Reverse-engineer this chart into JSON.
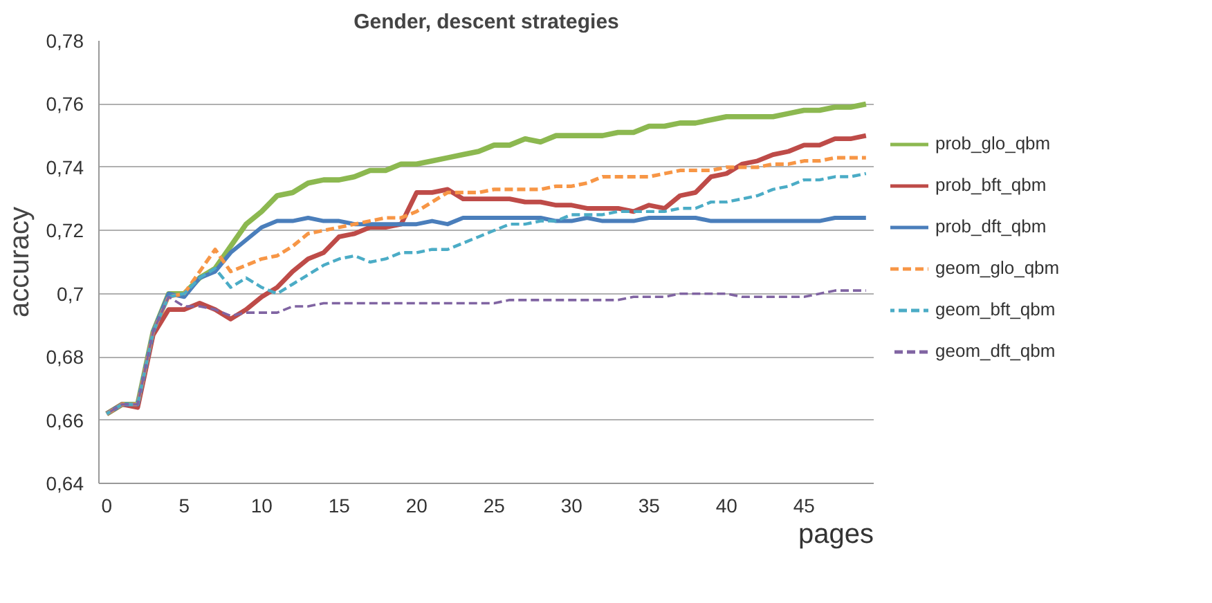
{
  "chart_data": {
    "type": "line",
    "title": "Gender, descent strategies",
    "xlabel": "pages",
    "ylabel": "accuracy",
    "x": [
      0,
      1,
      2,
      3,
      4,
      5,
      6,
      7,
      8,
      9,
      10,
      11,
      12,
      13,
      14,
      15,
      16,
      17,
      18,
      19,
      20,
      21,
      22,
      23,
      24,
      25,
      26,
      27,
      28,
      29,
      30,
      31,
      32,
      33,
      34,
      35,
      36,
      37,
      38,
      39,
      40,
      41,
      42,
      43,
      44,
      45,
      46,
      47,
      48,
      49
    ],
    "xlim": [
      -0.5,
      49.5
    ],
    "xticks": [
      0,
      5,
      10,
      15,
      20,
      25,
      30,
      35,
      40,
      45
    ],
    "ylim": [
      0.64,
      0.78
    ],
    "yticks": [
      {
        "value": 0.64,
        "label": "0,64"
      },
      {
        "value": 0.66,
        "label": "0,66"
      },
      {
        "value": 0.68,
        "label": "0,68"
      },
      {
        "value": 0.7,
        "label": "0,7"
      },
      {
        "value": 0.72,
        "label": "0,72"
      },
      {
        "value": 0.74,
        "label": "0,74"
      },
      {
        "value": 0.76,
        "label": "0,76"
      },
      {
        "value": 0.78,
        "label": "0,78"
      }
    ],
    "grid": "y",
    "legend": "right",
    "marker": "none",
    "series": [
      {
        "name": "prob_glo_qbm",
        "color": "#8cb850",
        "line_style": "solid",
        "values": [
          0.662,
          0.665,
          0.665,
          0.688,
          0.7,
          0.7,
          0.705,
          0.708,
          0.715,
          0.722,
          0.726,
          0.731,
          0.732,
          0.735,
          0.736,
          0.736,
          0.737,
          0.739,
          0.739,
          0.741,
          0.741,
          0.742,
          0.743,
          0.744,
          0.745,
          0.747,
          0.747,
          0.749,
          0.748,
          0.75,
          0.75,
          0.75,
          0.75,
          0.751,
          0.751,
          0.753,
          0.753,
          0.754,
          0.754,
          0.755,
          0.756,
          0.756,
          0.756,
          0.756,
          0.757,
          0.758,
          0.758,
          0.759,
          0.759,
          0.76
        ]
      },
      {
        "name": "prob_bft_qbm",
        "color": "#be4b48",
        "line_style": "solid",
        "values": [
          0.662,
          0.665,
          0.664,
          0.687,
          0.695,
          0.695,
          0.697,
          0.695,
          0.692,
          0.695,
          0.699,
          0.702,
          0.707,
          0.711,
          0.713,
          0.718,
          0.719,
          0.721,
          0.721,
          0.722,
          0.732,
          0.732,
          0.733,
          0.73,
          0.73,
          0.73,
          0.73,
          0.729,
          0.729,
          0.728,
          0.728,
          0.727,
          0.727,
          0.727,
          0.726,
          0.728,
          0.727,
          0.731,
          0.732,
          0.737,
          0.738,
          0.741,
          0.742,
          0.744,
          0.745,
          0.747,
          0.747,
          0.749,
          0.749,
          0.75
        ]
      },
      {
        "name": "prob_dft_qbm",
        "color": "#4a7ebb",
        "line_style": "solid",
        "values": [
          0.662,
          0.665,
          0.665,
          0.688,
          0.7,
          0.699,
          0.705,
          0.707,
          0.713,
          0.717,
          0.721,
          0.723,
          0.723,
          0.724,
          0.723,
          0.723,
          0.722,
          0.722,
          0.722,
          0.722,
          0.722,
          0.723,
          0.722,
          0.724,
          0.724,
          0.724,
          0.724,
          0.724,
          0.724,
          0.723,
          0.723,
          0.724,
          0.723,
          0.723,
          0.723,
          0.724,
          0.724,
          0.724,
          0.724,
          0.723,
          0.723,
          0.723,
          0.723,
          0.723,
          0.723,
          0.723,
          0.723,
          0.724,
          0.724,
          0.724
        ]
      },
      {
        "name": "geom_glo_qbm",
        "color": "#f79646",
        "line_style": "dashed",
        "values": [
          0.662,
          0.665,
          0.665,
          0.688,
          0.699,
          0.7,
          0.707,
          0.714,
          0.707,
          0.709,
          0.711,
          0.712,
          0.715,
          0.719,
          0.72,
          0.721,
          0.722,
          0.723,
          0.724,
          0.724,
          0.726,
          0.729,
          0.732,
          0.732,
          0.732,
          0.733,
          0.733,
          0.733,
          0.733,
          0.734,
          0.734,
          0.735,
          0.737,
          0.737,
          0.737,
          0.737,
          0.738,
          0.739,
          0.739,
          0.739,
          0.74,
          0.74,
          0.74,
          0.741,
          0.741,
          0.742,
          0.742,
          0.743,
          0.743,
          0.743
        ]
      },
      {
        "name": "geom_bft_qbm",
        "color": "#4bacc6",
        "line_style": "dashed",
        "values": [
          0.662,
          0.665,
          0.665,
          0.688,
          0.699,
          0.7,
          0.705,
          0.708,
          0.702,
          0.705,
          0.702,
          0.7,
          0.703,
          0.706,
          0.709,
          0.711,
          0.712,
          0.71,
          0.711,
          0.713,
          0.713,
          0.714,
          0.714,
          0.716,
          0.718,
          0.72,
          0.722,
          0.722,
          0.723,
          0.723,
          0.725,
          0.725,
          0.725,
          0.726,
          0.726,
          0.726,
          0.726,
          0.727,
          0.727,
          0.729,
          0.729,
          0.73,
          0.731,
          0.733,
          0.734,
          0.736,
          0.736,
          0.737,
          0.737,
          0.738
        ]
      },
      {
        "name": "geom_dft_qbm",
        "color": "#8064a2",
        "line_style": "dashed",
        "values": [
          0.662,
          0.665,
          0.665,
          0.688,
          0.699,
          0.696,
          0.696,
          0.695,
          0.693,
          0.694,
          0.694,
          0.694,
          0.696,
          0.696,
          0.697,
          0.697,
          0.697,
          0.697,
          0.697,
          0.697,
          0.697,
          0.697,
          0.697,
          0.697,
          0.697,
          0.697,
          0.698,
          0.698,
          0.698,
          0.698,
          0.698,
          0.698,
          0.698,
          0.698,
          0.699,
          0.699,
          0.699,
          0.7,
          0.7,
          0.7,
          0.7,
          0.699,
          0.699,
          0.699,
          0.699,
          0.699,
          0.7,
          0.701,
          0.701,
          0.701
        ]
      }
    ]
  }
}
